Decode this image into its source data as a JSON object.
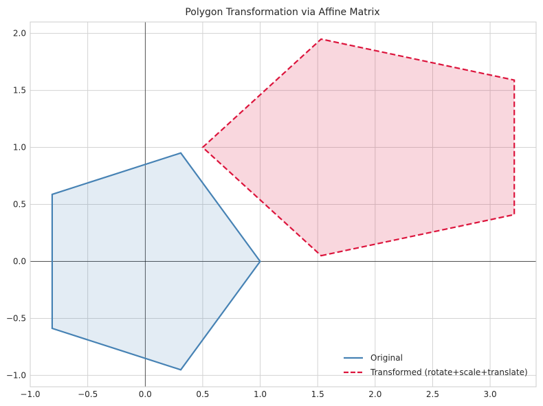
{
  "chart_data": {
    "type": "polygon",
    "title": "Polygon Transformation via Affine Matrix",
    "xlabel": "",
    "ylabel": "",
    "xlim": [
      -1.0,
      3.4
    ],
    "ylim": [
      -1.1,
      2.1
    ],
    "xticks": [
      -1.0,
      -0.5,
      0.0,
      0.5,
      1.0,
      1.5,
      2.0,
      2.5,
      3.0
    ],
    "xtick_labels": [
      "−1.0",
      "−0.5",
      "0.0",
      "0.5",
      "1.0",
      "1.5",
      "2.0",
      "2.5",
      "3.0"
    ],
    "yticks": [
      -1.0,
      -0.5,
      0.0,
      0.5,
      1.0,
      1.5,
      2.0
    ],
    "ytick_labels": [
      "−1.0",
      "−0.5",
      "0.0",
      "0.5",
      "1.0",
      "1.5",
      "2.0"
    ],
    "grid": true,
    "axis_lines": true,
    "legend_position": "lower-right",
    "series": [
      {
        "name": "Original",
        "color": "#4682b4",
        "style": "solid",
        "points": [
          [
            1.0,
            0.0
          ],
          [
            0.309,
            0.951
          ],
          [
            -0.809,
            0.588
          ],
          [
            -0.809,
            -0.588
          ],
          [
            0.309,
            -0.951
          ]
        ]
      },
      {
        "name": "Transformed (rotate+scale+translate)",
        "color": "#dc143c",
        "style": "dashed",
        "points": [
          [
            1.53,
            0.05
          ],
          [
            3.21,
            0.41
          ],
          [
            3.21,
            1.59
          ],
          [
            1.53,
            1.95
          ],
          [
            0.5,
            1.0
          ]
        ]
      }
    ]
  }
}
